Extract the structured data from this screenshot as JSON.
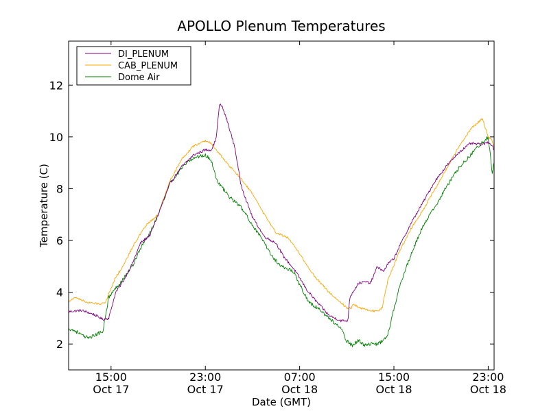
{
  "chart_data": {
    "type": "line",
    "title": "APOLLO Plenum Temperatures",
    "xlabel": "Date (GMT)",
    "ylabel": "Temperature (C)",
    "x_unit": "hours since Oct 17 00:00 GMT",
    "xlim": [
      11.4,
      47.5
    ],
    "ylim": [
      1.0,
      13.7
    ],
    "y_ticks": [
      2,
      4,
      6,
      8,
      10,
      12
    ],
    "x_ticks": [
      {
        "x": 15,
        "time": "15:00",
        "date": "Oct 17"
      },
      {
        "x": 23,
        "time": "23:00",
        "date": "Oct 17"
      },
      {
        "x": 31,
        "time": "07:00",
        "date": "Oct 18"
      },
      {
        "x": 39,
        "time": "15:00",
        "date": "Oct 18"
      },
      {
        "x": 47,
        "time": "23:00",
        "date": "Oct 18"
      }
    ],
    "legend": "top-left",
    "series": [
      {
        "name": "DI_PLENUM",
        "color": "#800080",
        "noise": 0.05,
        "x": [
          11.4,
          12.5,
          13.5,
          14.3,
          14.8,
          15.4,
          16.0,
          16.8,
          17.5,
          18.3,
          19.0,
          20.0,
          21.0,
          22.0,
          23.0,
          23.5,
          23.9,
          24.2,
          24.4,
          24.8,
          25.5,
          26.0,
          26.5,
          27.0,
          28.0,
          29.0,
          29.6,
          30.5,
          31.0,
          31.6,
          32.5,
          33.5,
          34.5,
          35.1,
          35.25,
          35.5,
          36.0,
          36.6,
          37.0,
          37.2,
          37.6,
          38.1,
          38.5,
          39.0,
          39.5,
          40.5,
          41.5,
          42.5,
          43.5,
          44.5,
          45.5,
          46.5,
          47.0,
          47.3,
          47.5
        ],
        "y": [
          3.25,
          3.3,
          3.15,
          2.95,
          3.0,
          4.0,
          4.4,
          5.1,
          5.9,
          6.2,
          7.0,
          8.2,
          8.85,
          9.3,
          9.5,
          9.5,
          9.9,
          11.25,
          11.2,
          10.7,
          9.6,
          8.2,
          7.5,
          6.9,
          6.15,
          5.9,
          5.4,
          4.9,
          4.55,
          4.1,
          3.6,
          3.1,
          2.9,
          2.9,
          3.8,
          4.0,
          4.35,
          4.4,
          4.35,
          4.55,
          5.0,
          4.8,
          5.1,
          5.3,
          5.8,
          6.7,
          7.5,
          8.3,
          8.9,
          9.4,
          9.75,
          9.7,
          9.8,
          9.7,
          9.5
        ]
      },
      {
        "name": "CAB_PLENUM",
        "color": "#ffa500",
        "noise": 0.04,
        "x": [
          11.4,
          12.0,
          13.0,
          14.0,
          14.5,
          15.3,
          16.0,
          17.0,
          18.0,
          19.0,
          20.0,
          21.0,
          22.0,
          23.0,
          23.5,
          24.0,
          25.0,
          26.0,
          27.0,
          28.0,
          29.0,
          30.0,
          31.0,
          31.8,
          32.5,
          33.5,
          34.5,
          35.0,
          35.4,
          35.6,
          36.0,
          37.0,
          37.6,
          38.0,
          38.5,
          39.5,
          40.5,
          41.5,
          42.5,
          43.5,
          44.5,
          45.5,
          46.5,
          47.0,
          47.3,
          47.5
        ],
        "y": [
          3.65,
          3.8,
          3.6,
          3.55,
          3.6,
          4.5,
          5.0,
          5.9,
          6.6,
          7.0,
          8.3,
          9.15,
          9.65,
          9.85,
          9.75,
          9.45,
          8.9,
          8.4,
          7.8,
          7.0,
          6.3,
          6.1,
          5.5,
          4.9,
          4.5,
          4.0,
          3.6,
          3.4,
          3.4,
          3.55,
          3.4,
          3.3,
          3.25,
          3.4,
          4.5,
          5.6,
          6.5,
          7.2,
          8.0,
          8.8,
          9.6,
          10.3,
          10.7,
          10.0,
          9.9,
          9.6
        ]
      },
      {
        "name": "Dome Air",
        "color": "#008000",
        "noise": 0.07,
        "x": [
          11.4,
          12.0,
          12.8,
          13.5,
          14.3,
          14.8,
          15.3,
          16.0,
          16.8,
          17.5,
          18.3,
          19.0,
          20.0,
          21.0,
          22.0,
          23.0,
          23.5,
          24.0,
          25.0,
          26.0,
          27.0,
          28.0,
          28.8,
          29.5,
          30.5,
          31.0,
          31.8,
          32.5,
          33.5,
          34.5,
          35.0,
          35.5,
          36.0,
          36.5,
          37.0,
          37.5,
          38.0,
          38.5,
          39.5,
          40.5,
          41.5,
          42.5,
          43.5,
          44.5,
          45.5,
          46.5,
          47.0,
          47.2,
          47.35,
          47.5
        ],
        "y": [
          2.6,
          2.5,
          2.25,
          2.3,
          2.5,
          3.8,
          4.1,
          4.5,
          5.0,
          5.7,
          6.3,
          7.0,
          8.2,
          8.8,
          9.2,
          9.3,
          9.1,
          8.3,
          7.7,
          7.3,
          6.6,
          5.9,
          5.3,
          5.0,
          4.8,
          4.3,
          3.6,
          3.4,
          3.0,
          2.6,
          2.1,
          1.95,
          2.15,
          1.95,
          2.0,
          2.0,
          2.1,
          2.4,
          4.3,
          5.5,
          6.6,
          7.3,
          8.1,
          8.8,
          9.3,
          9.8,
          10.0,
          9.2,
          8.6,
          9.0
        ]
      }
    ]
  }
}
